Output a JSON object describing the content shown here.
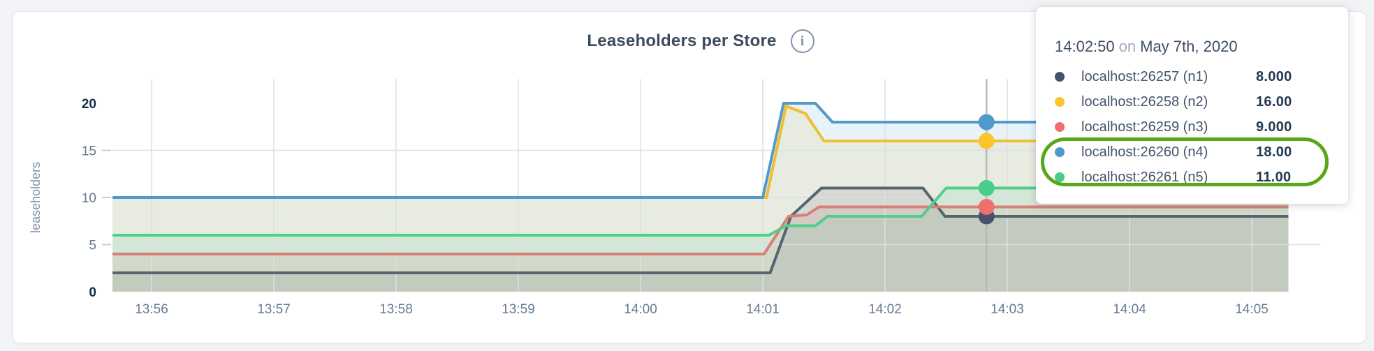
{
  "card": {
    "title": "Leaseholders per Store",
    "info_glyph": "i"
  },
  "chart_data": {
    "type": "line",
    "title": "Leaseholders per Store",
    "xlabel": "",
    "ylabel": "leaseholders",
    "ylim": [
      0,
      20
    ],
    "xlim": [
      "13:55:41",
      "14:05:18"
    ],
    "grid": true,
    "legend_position": "hover-tooltip",
    "x_unit": "minutes after 13:55",
    "x_ticks": [
      {
        "t": 1,
        "label": "13:56"
      },
      {
        "t": 2,
        "label": "13:57"
      },
      {
        "t": 3,
        "label": "13:58"
      },
      {
        "t": 4,
        "label": "13:59"
      },
      {
        "t": 5,
        "label": "14:00"
      },
      {
        "t": 6,
        "label": "14:01"
      },
      {
        "t": 7,
        "label": "14:02"
      },
      {
        "t": 8,
        "label": "14:03"
      },
      {
        "t": 9,
        "label": "14:04"
      },
      {
        "t": 10,
        "label": "14:05"
      }
    ],
    "y_ticks": [
      {
        "v": 0,
        "label": "0",
        "emph": true,
        "grid": false
      },
      {
        "v": 5,
        "label": "5",
        "emph": false,
        "grid": true
      },
      {
        "v": 10,
        "label": "10",
        "emph": false,
        "grid": true
      },
      {
        "v": 15,
        "label": "15",
        "emph": false,
        "grid": true
      },
      {
        "v": 20,
        "label": "20",
        "emph": true,
        "grid": false
      }
    ],
    "series": [
      {
        "name": "localhost:26257 (n1)",
        "color": "#45526b",
        "line_color": "#57646f",
        "points": [
          [
            0.68,
            2
          ],
          [
            6.06,
            2
          ],
          [
            6.23,
            8
          ],
          [
            6.48,
            11
          ],
          [
            7.31,
            11
          ],
          [
            7.49,
            8
          ],
          [
            10.3,
            8
          ]
        ]
      },
      {
        "name": "localhost:26258 (n2)",
        "color": "#fcc42a",
        "line_color": "#edc032",
        "points": [
          [
            0.68,
            10
          ],
          [
            6.03,
            10
          ],
          [
            6.19,
            19.7
          ],
          [
            6.35,
            18.9
          ],
          [
            6.5,
            16
          ],
          [
            10.3,
            16
          ]
        ]
      },
      {
        "name": "localhost:26259 (n3)",
        "color": "#ef6f6f",
        "line_color": "#d97f7a",
        "points": [
          [
            0.68,
            4
          ],
          [
            6.01,
            4
          ],
          [
            6.21,
            8
          ],
          [
            6.36,
            8.15
          ],
          [
            6.46,
            9
          ],
          [
            10.3,
            9
          ]
        ]
      },
      {
        "name": "localhost:26260 (n4)",
        "color": "#4e9acd",
        "line_color": "#5499c8",
        "points": [
          [
            0.68,
            10
          ],
          [
            6.0,
            10
          ],
          [
            6.17,
            20
          ],
          [
            6.43,
            20
          ],
          [
            6.57,
            18
          ],
          [
            10.3,
            18
          ]
        ]
      },
      {
        "name": "localhost:26261 (n5)",
        "color": "#46ce8a",
        "line_color": "#4fce8d",
        "points": [
          [
            0.68,
            6
          ],
          [
            6.05,
            6
          ],
          [
            6.19,
            7
          ],
          [
            6.43,
            7
          ],
          [
            6.53,
            8
          ],
          [
            7.3,
            8
          ],
          [
            7.5,
            11
          ],
          [
            10.3,
            11
          ]
        ]
      }
    ],
    "hover": {
      "t": 7.83,
      "time_label": "14:02:50",
      "values": [
        8,
        16,
        9,
        18,
        11
      ]
    }
  },
  "tooltip": {
    "time": "14:02:50",
    "conj": "on",
    "date": "May 7th, 2020",
    "rows": [
      {
        "label": "localhost:26257 (n1)",
        "value": "8.000",
        "color": "#45526b",
        "highlighted": false
      },
      {
        "label": "localhost:26258 (n2)",
        "value": "16.00",
        "color": "#fcc42a",
        "highlighted": false
      },
      {
        "label": "localhost:26259 (n3)",
        "value": "9.000",
        "color": "#ef6f6f",
        "highlighted": false
      },
      {
        "label": "localhost:26260 (n4)",
        "value": "18.00",
        "color": "#4e9acd",
        "highlighted": true
      },
      {
        "label": "localhost:26261 (n5)",
        "value": "11.00",
        "color": "#46ce8a",
        "highlighted": true
      }
    ]
  },
  "annotation": {
    "type": "ellipse",
    "color": "#57a819",
    "around": [
      "localhost:26260 (n4)",
      "localhost:26261 (n5)"
    ]
  }
}
